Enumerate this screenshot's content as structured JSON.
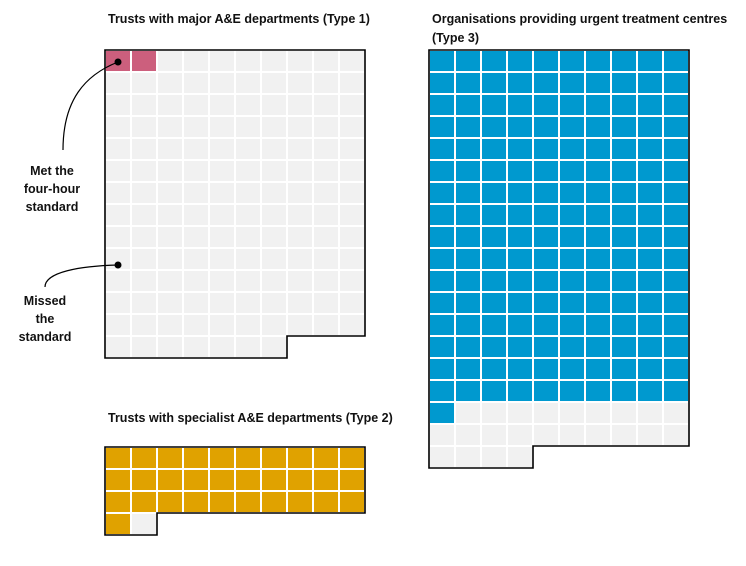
{
  "colors": {
    "met_type1": "#cc5f7d",
    "met_type2": "#e0a200",
    "met_type3": "#0099cf",
    "missed": "#f1f1f1",
    "gridline": "#ffffff",
    "outline": "#000000"
  },
  "annotations": {
    "met": [
      "Met the",
      "four-hour",
      "standard"
    ],
    "missed": [
      "Missed",
      "the",
      "standard"
    ]
  },
  "chart_data": [
    {
      "type": "waffle",
      "title": "Trusts with major A&E departments (Type 1)",
      "columns": 10,
      "total": 137,
      "met": 2,
      "missed": 135
    },
    {
      "type": "waffle",
      "title": "Trusts with specialist A&E departments (Type 2)",
      "columns": 10,
      "total": 32,
      "met": 31,
      "missed": 1
    },
    {
      "type": "waffle",
      "title": "Organisations providing  urgent treatment centres (Type 3)",
      "columns": 10,
      "total": 184,
      "met": 161,
      "missed": 23
    }
  ]
}
